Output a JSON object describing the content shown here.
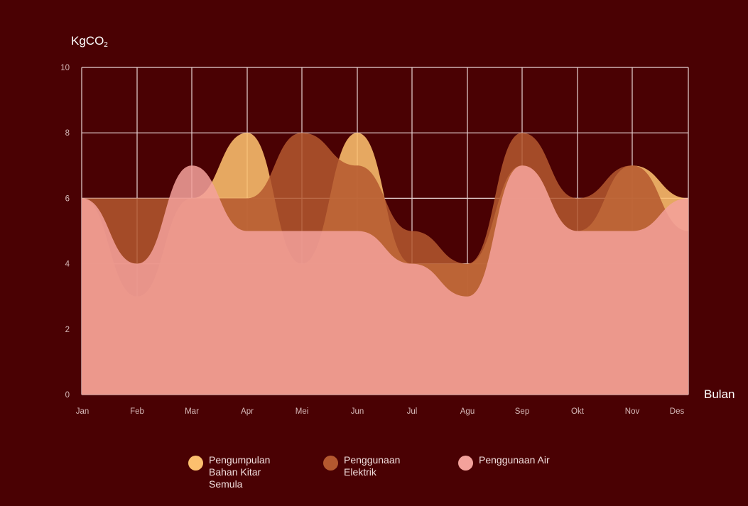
{
  "chart_data": {
    "type": "area",
    "ylabel_main": "KgCO",
    "ylabel_sub": "2",
    "xlabel": "Bulan",
    "categories": [
      "Jan",
      "Feb",
      "Mar",
      "Apr",
      "Mei",
      "Jun",
      "Jul",
      "Agu",
      "Sep",
      "Okt",
      "Nov",
      "Des"
    ],
    "ylim": [
      0,
      10
    ],
    "yticks": [
      "0",
      "2",
      "4",
      "6",
      "8",
      "10"
    ],
    "grid": true,
    "legend_position": "bottom",
    "series": [
      {
        "name": "Pengumpulan Bahan Kitar Semula",
        "legend_lines": [
          "Pengumpulan",
          "Bahan Kitar",
          "Semula"
        ],
        "color": "#fcbf6e",
        "values": [
          6,
          3,
          6,
          8,
          4,
          8,
          4,
          4,
          7,
          5,
          7,
          6
        ]
      },
      {
        "name": "Penggunaan Elektrik",
        "legend_lines": [
          "Penggunaan",
          "Elektrik"
        ],
        "color": "#b4582f",
        "values": [
          6,
          6,
          6,
          6,
          8,
          7,
          5,
          4,
          8,
          6,
          7,
          5
        ]
      },
      {
        "name": "Penggunaan Air",
        "legend_lines": [
          "Penggunaan Air"
        ],
        "color": "#f3a19b",
        "values": [
          6,
          4,
          7,
          5,
          5,
          5,
          4,
          3,
          7,
          5,
          5,
          6
        ]
      }
    ]
  }
}
